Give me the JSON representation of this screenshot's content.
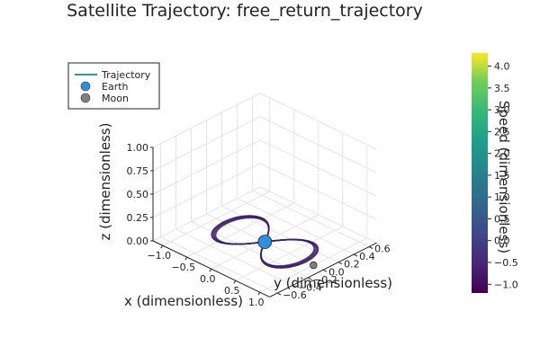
{
  "chart_data": {
    "type": "scatter",
    "title": "Satellite Trajectory: free_return_trajectory",
    "xlabel": "x (dimensionless)",
    "ylabel": "y (dimensionless)",
    "zlabel": "z (dimensionless)",
    "xlim": [
      -1.2,
      1.2
    ],
    "ylim": [
      -0.7,
      0.7
    ],
    "zlim": [
      0,
      1.0
    ],
    "x_ticks": [
      "−1.0",
      "−0.5",
      "0.0",
      "0.5",
      "1.0"
    ],
    "x_tick_values": [
      -1.0,
      -0.5,
      0.0,
      0.5,
      1.0
    ],
    "y_ticks": [
      "−0.6",
      "−0.4",
      "−0.2",
      "0.0",
      "0.2",
      "0.4",
      "0.6"
    ],
    "y_tick_values": [
      -0.6,
      -0.4,
      -0.2,
      0.0,
      0.2,
      0.4,
      0.6
    ],
    "z_ticks": [
      "0.00",
      "0.25",
      "0.50",
      "0.75",
      "1.00"
    ],
    "z_tick_values": [
      0.0,
      0.25,
      0.5,
      0.75,
      1.0
    ],
    "grid": true,
    "legend_position": "top-left",
    "legend": [
      {
        "label": "Trajectory",
        "kind": "line",
        "color": "#2a9d9a"
      },
      {
        "label": "Earth",
        "kind": "marker",
        "color": "#2e8fe0"
      },
      {
        "label": "Moon",
        "kind": "marker",
        "color": "#808080"
      }
    ],
    "trajectory": {
      "name": "Trajectory",
      "shape": "figure-eight",
      "x_extent": [
        -0.85,
        0.85
      ],
      "y_extent": [
        -0.42,
        0.42
      ],
      "z": 0.0
    },
    "earth": {
      "name": "Earth",
      "x": 0.0,
      "y": 0.0,
      "z": 0.0,
      "color": "#2e8fe0"
    },
    "moon": {
      "name": "Moon",
      "x": 1.0,
      "y": 0.0,
      "z": 0.0,
      "color": "#808080"
    },
    "colorbar": {
      "label": "Speed (dimensionless)",
      "colormap": "viridis",
      "range": [
        -1.2,
        4.3
      ],
      "ticks": [
        "−1.0",
        "−0.5",
        "0.0",
        "0.5",
        "1.0",
        "1.5",
        "2.0",
        "2.5",
        "3.0",
        "3.5",
        "4.0"
      ],
      "tick_values": [
        -1.0,
        -0.5,
        0.0,
        0.5,
        1.0,
        1.5,
        2.0,
        2.5,
        3.0,
        3.5,
        4.0
      ]
    }
  }
}
